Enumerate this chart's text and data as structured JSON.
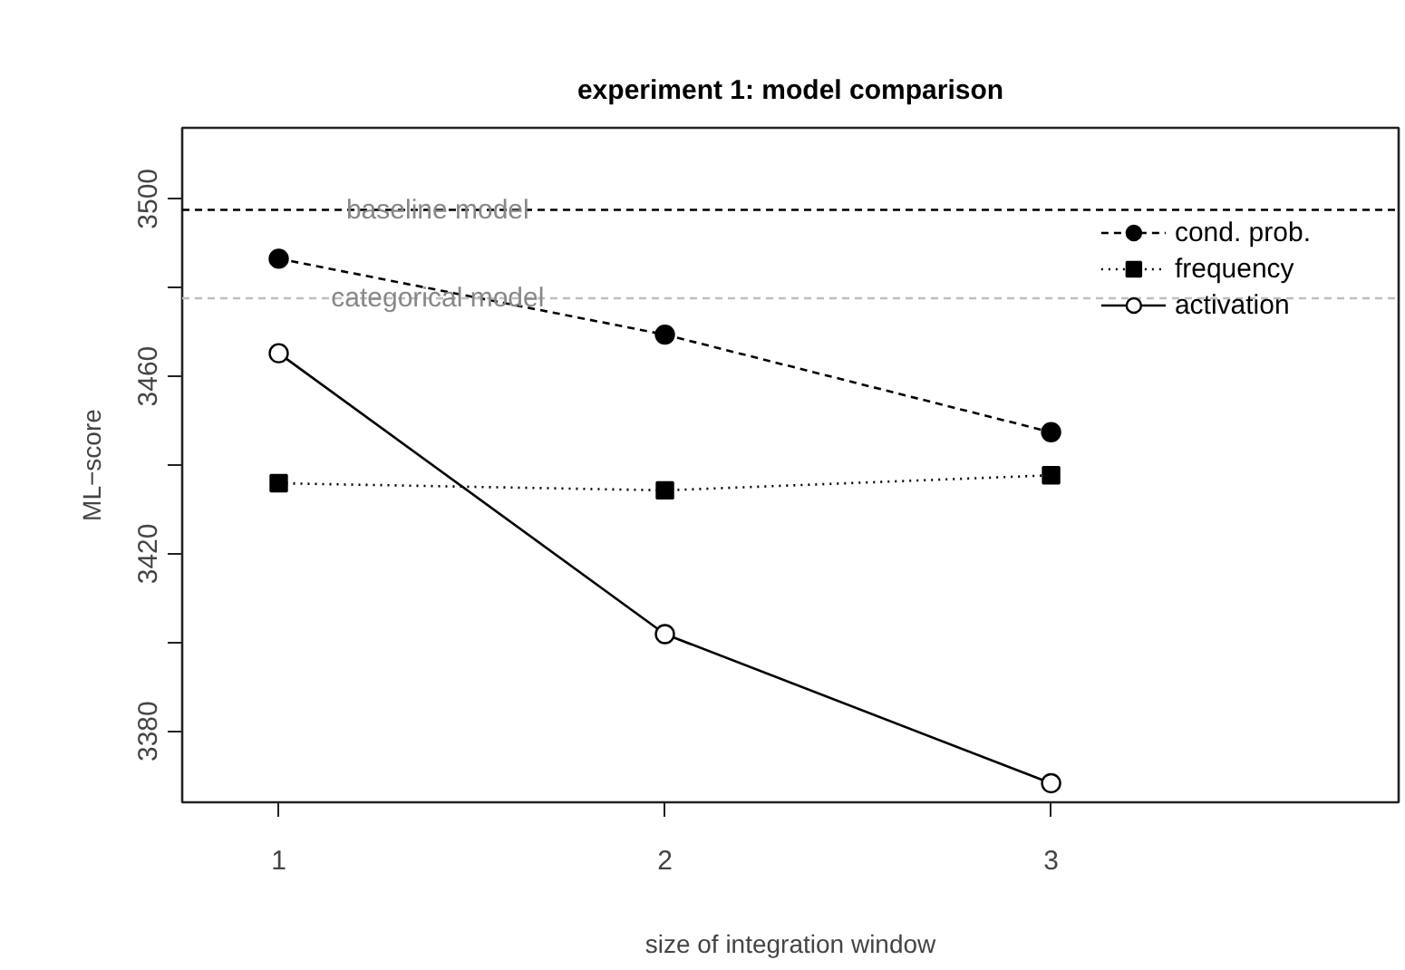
{
  "chart_data": {
    "type": "line",
    "title": "experiment 1: model comparison",
    "xlabel": "size of integration window",
    "ylabel": "ML−score",
    "x": [
      1,
      2,
      3
    ],
    "xlim": [
      0.75,
      3.9
    ],
    "xticks": [
      1,
      2,
      3
    ],
    "ylim": [
      3364,
      3516
    ],
    "yticks": [
      3380,
      {
        "value": 3400,
        "label": null
      },
      3420,
      {
        "value": 3440,
        "label": null
      },
      3460,
      {
        "value": 3480,
        "label": null
      },
      3500
    ],
    "series": [
      {
        "name": "cond. prob.",
        "color": "#000000",
        "values": [
          3486.5,
          3469.4,
          3447.4
        ],
        "marker": "circle",
        "line_style": "dashed"
      },
      {
        "name": "frequency",
        "color": "#000000",
        "values": [
          3435.9,
          3434.3,
          3437.7
        ],
        "marker": "square",
        "line_style": "dotted"
      },
      {
        "name": "activation",
        "color": "#000000",
        "values": [
          3465.2,
          3401.9,
          3368.3
        ],
        "marker": "circle_open",
        "line_style": "solid"
      }
    ],
    "ref_lines": [
      {
        "axis": "y",
        "value": 3497.5,
        "label": "baseline model",
        "color": "#000000",
        "line_style": "dashed"
      },
      {
        "axis": "y",
        "value": 3477.6,
        "label": "categorical model",
        "color": "#bebebe",
        "line_style": "dashed"
      }
    ],
    "legend": "top right",
    "grid": false
  }
}
